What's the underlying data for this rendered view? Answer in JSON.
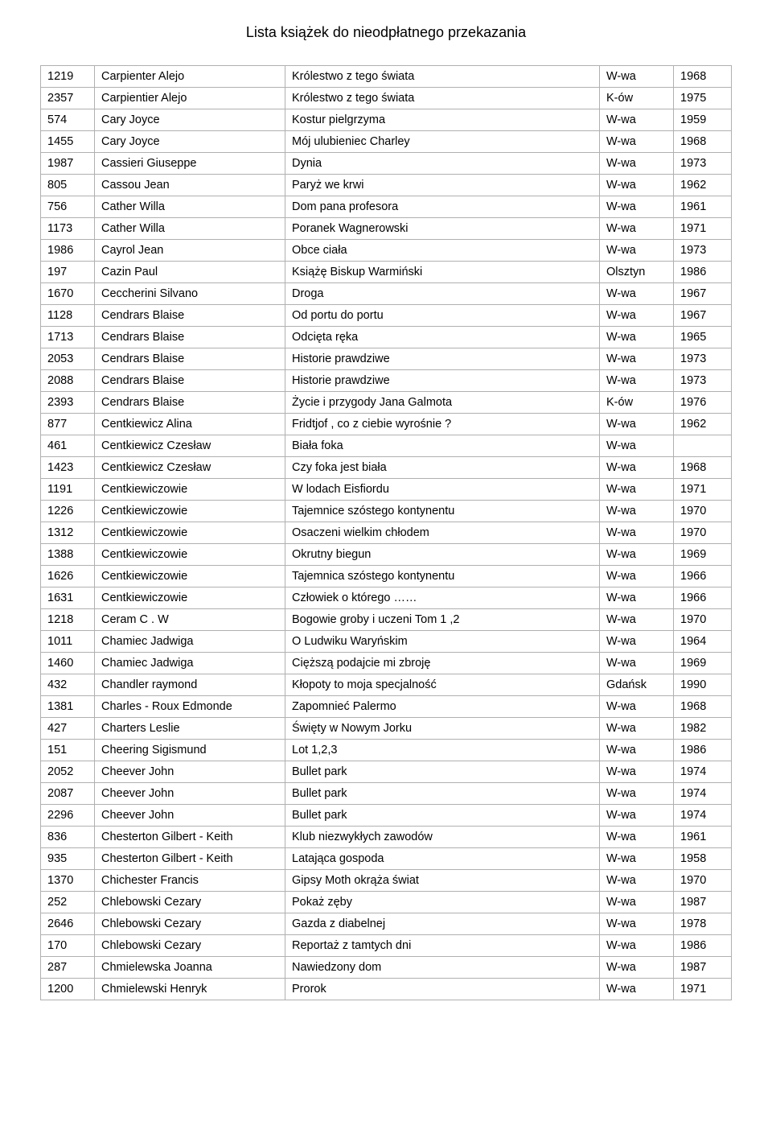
{
  "title": "Lista książek do nieodpłatnego przekazania",
  "table": {
    "columns": [
      "id",
      "author",
      "title",
      "place",
      "year"
    ],
    "rows": [
      [
        "1219",
        "Carpienter  Alejo",
        "Królestwo z tego świata",
        "W-wa",
        "1968"
      ],
      [
        "2357",
        "Carpientier  Alejo",
        "Królestwo z tego świata",
        "K-ów",
        "1975"
      ],
      [
        "574",
        "Cary  Joyce",
        "Kostur  pielgrzyma",
        "W-wa",
        "1959"
      ],
      [
        "1455",
        "Cary  Joyce",
        "Mój ulubieniec Charley",
        "W-wa",
        "1968"
      ],
      [
        "1987",
        "Cassieri  Giuseppe",
        "Dynia",
        "W-wa",
        "1973"
      ],
      [
        "805",
        "Cassou  Jean",
        "Paryż  we  krwi",
        "W-wa",
        "1962"
      ],
      [
        "756",
        "Cather  Willa",
        "Dom pana profesora",
        "W-wa",
        "1961"
      ],
      [
        "1173",
        "Cather  Willa",
        "Poranek  Wagnerowski",
        "W-wa",
        "1971"
      ],
      [
        "1986",
        "Cayrol  Jean",
        "Obce ciała",
        "W-wa",
        "1973"
      ],
      [
        "197",
        "Cazin Paul",
        "Książę Biskup Warmiński",
        "Olsztyn",
        "1986"
      ],
      [
        "1670",
        "Ceccherini  Silvano",
        "Droga",
        "W-wa",
        "1967"
      ],
      [
        "1128",
        "Cendrars  Blaise",
        "Od portu do portu",
        "W-wa",
        "1967"
      ],
      [
        "1713",
        "Cendrars  Blaise",
        "Odcięta  ręka",
        "W-wa",
        "1965"
      ],
      [
        "2053",
        "Cendrars  Blaise",
        "Historie prawdziwe",
        "W-wa",
        "1973"
      ],
      [
        "2088",
        "Cendrars  Blaise",
        "Historie prawdziwe",
        "W-wa",
        "1973"
      ],
      [
        "2393",
        "Cendrars  Blaise",
        "Życie i przygody  Jana  Galmota",
        "K-ów",
        "1976"
      ],
      [
        "877",
        "Centkiewicz  Alina",
        "Fridtjof , co z ciebie wyrośnie ?",
        "W-wa",
        "1962"
      ],
      [
        "461",
        "Centkiewicz  Czesław",
        "Biała  foka",
        "W-wa",
        ""
      ],
      [
        "1423",
        "Centkiewicz  Czesław",
        "Czy foka jest biała",
        "W-wa",
        "1968"
      ],
      [
        "1191",
        "Centkiewiczowie",
        "W lodach  Eisfiordu",
        "W-wa",
        "1971"
      ],
      [
        "1226",
        "Centkiewiczowie",
        "Tajemnice szóstego kontynentu",
        "W-wa",
        "1970"
      ],
      [
        "1312",
        "Centkiewiczowie",
        "Osaczeni wielkim chłodem",
        "W-wa",
        "1970"
      ],
      [
        "1388",
        "Centkiewiczowie",
        "Okrutny biegun",
        "W-wa",
        "1969"
      ],
      [
        "1626",
        "Centkiewiczowie",
        "Tajemnica szóstego kontynentu",
        "W-wa",
        "1966"
      ],
      [
        "1631",
        "Centkiewiczowie",
        "Człowiek o którego ……",
        "W-wa",
        "1966"
      ],
      [
        "1218",
        "Ceram  C . W",
        "Bogowie groby i uczeni         Tom 1 ,2",
        "W-wa",
        "1970"
      ],
      [
        "1011",
        "Chamiec  Jadwiga",
        "O  Ludwiku  Waryńskim",
        "W-wa",
        "1964"
      ],
      [
        "1460",
        "Chamiec  Jadwiga",
        "Cięższą podajcie mi zbroję",
        "W-wa",
        "1969"
      ],
      [
        "432",
        "Chandler  raymond",
        "Kłopoty to moja specjalność",
        "Gdańsk",
        "1990"
      ],
      [
        "1381",
        "Charles - Roux  Edmonde",
        "Zapomnieć Palermo",
        "W-wa",
        "1968"
      ],
      [
        "427",
        "Charters  Leslie",
        "Święty w Nowym  Jorku",
        "W-wa",
        "1982"
      ],
      [
        "151",
        "Cheering Sigismund",
        "Lot 1,2,3",
        "W-wa",
        "1986"
      ],
      [
        "2052",
        "Cheever  John",
        "Bullet  park",
        "W-wa",
        "1974"
      ],
      [
        "2087",
        "Cheever  John",
        "Bullet  park",
        "W-wa",
        "1974"
      ],
      [
        "2296",
        "Cheever  John",
        "Bullet  park",
        "W-wa",
        "1974"
      ],
      [
        "836",
        "Chesterton  Gilbert - Keith",
        "Klub niezwykłych zawodów",
        "W-wa",
        "1961"
      ],
      [
        "935",
        "Chesterton  Gilbert - Keith",
        "Latająca gospoda",
        "W-wa",
        "1958"
      ],
      [
        "1370",
        "Chichester  Francis",
        "Gipsy Moth okrąża świat",
        "W-wa",
        "1970"
      ],
      [
        "252",
        "Chlebowski  Cezary",
        "Pokaż  zęby",
        "W-wa",
        "1987"
      ],
      [
        "2646",
        "Chlebowski  Cezary",
        "Gazda  z diabelnej",
        "W-wa",
        "1978"
      ],
      [
        "170",
        "Chlebowski Cezary",
        "Reportaż z tamtych dni",
        "W-wa",
        "1986"
      ],
      [
        "287",
        "Chmielewska  Joanna",
        "Nawiedzony dom",
        "W-wa",
        "1987"
      ],
      [
        "1200",
        "Chmielewski  Henryk",
        "Prorok",
        "W-wa",
        "1971"
      ]
    ]
  },
  "style": {
    "border_color": "#b0b0b0",
    "font_size": 14.5,
    "title_font_size": 18
  }
}
